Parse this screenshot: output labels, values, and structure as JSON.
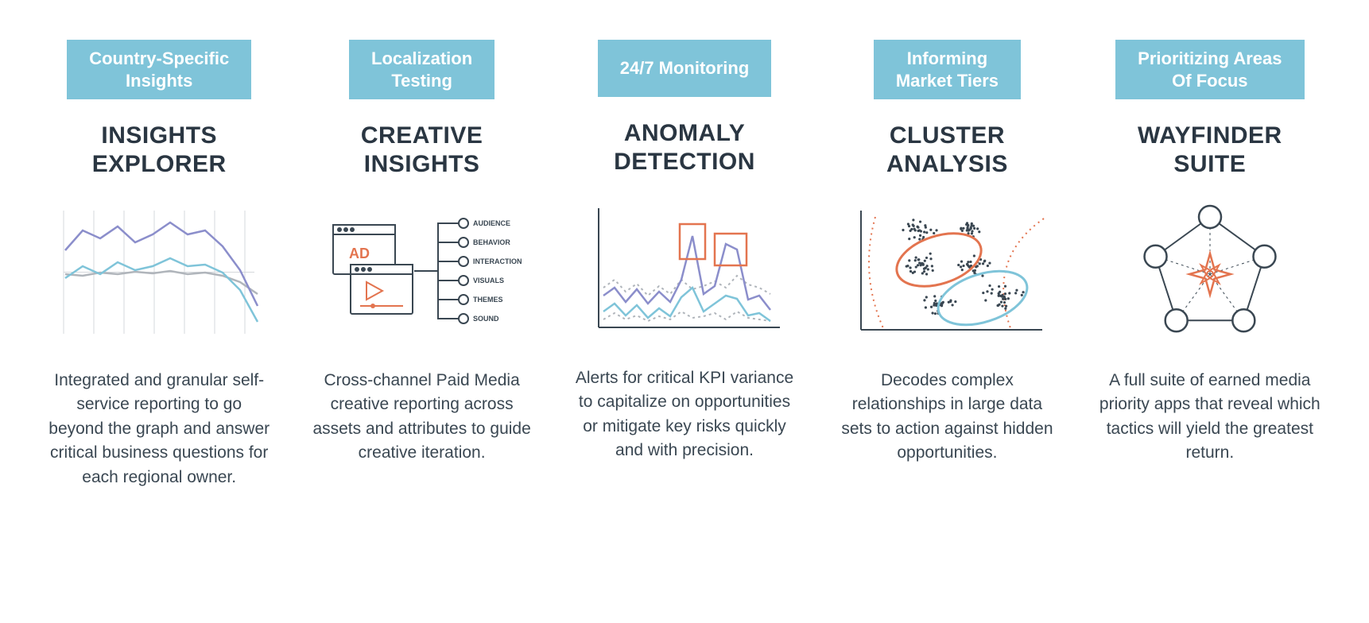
{
  "colors": {
    "tag_bg": "#7fc4d9",
    "tag_text": "#ffffff",
    "title": "#2a3642",
    "desc": "#3a4752",
    "purple": "#8b8ecb",
    "teal": "#7fc4d9",
    "gray": "#b0b5bb",
    "orange": "#e3744f",
    "dark": "#3a4752",
    "grid": "#d5d8dc"
  },
  "cards": [
    {
      "tag": "Country-Specific\nInsights",
      "title": "INSIGHTS\nEXPLORER",
      "desc": "Integrated and granular self-service reporting to go beyond the graph and answer critical business questions for each regional owner.",
      "illus": "lines"
    },
    {
      "tag": "Localization\nTesting",
      "title": "CREATIVE\nINSIGHTS",
      "desc": "Cross-channel Paid Media creative reporting across assets and attributes to guide creative iteration.",
      "illus": "creative",
      "labels": [
        "AUDIENCE",
        "BEHAVIOR",
        "INTERACTION",
        "VISUALS",
        "THEMES",
        "SOUND"
      ]
    },
    {
      "tag": "24/7 Monitoring",
      "title": "ANOMALY\nDETECTION",
      "desc": "Alerts for critical KPI variance to capitalize on opportunities or mitigate key risks quickly and with precision.",
      "illus": "anomaly"
    },
    {
      "tag": "Informing\nMarket Tiers",
      "title": "CLUSTER\nANALYSIS",
      "desc": "Decodes complex relationships in large data sets to action against hidden opportunities.",
      "illus": "cluster"
    },
    {
      "tag": "Prioritizing Areas\nOf Focus",
      "title": "WAYFINDER\nSUITE",
      "desc": "A full suite of earned media priority apps that reveal which tactics will yield the greatest return.",
      "illus": "wayfinder"
    }
  ]
}
